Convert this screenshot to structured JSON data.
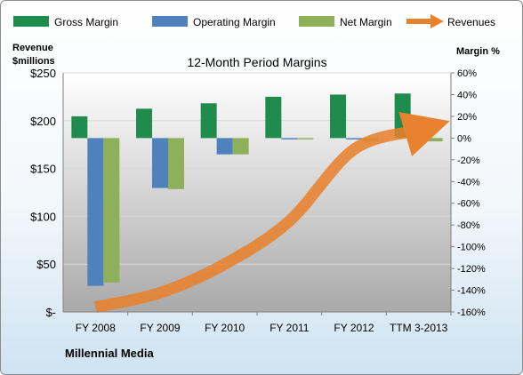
{
  "chart_data": {
    "type": "bar",
    "title": "12-Month Period Margins",
    "categories": [
      "FY 2008",
      "FY 2009",
      "FY 2010",
      "FY 2011",
      "FY 2012",
      "TTM 3-2013"
    ],
    "series": [
      {
        "name": "Gross Margin",
        "type": "bar",
        "axis": "right",
        "color": "#1f8b4c",
        "values": [
          20,
          27,
          32,
          38,
          40,
          41
        ]
      },
      {
        "name": "Operating Margin",
        "type": "bar",
        "axis": "right",
        "color": "#4f81bd",
        "values": [
          -136,
          -46,
          -15,
          -1,
          -1,
          -1
        ]
      },
      {
        "name": "Net Margin",
        "type": "bar",
        "axis": "right",
        "color": "#8fb05a",
        "values": [
          -133,
          -47,
          -15,
          -1,
          -3,
          -3
        ]
      },
      {
        "name": "Revenues",
        "type": "line",
        "axis": "left",
        "color": "#e8822e",
        "values": [
          5,
          20,
          50,
          95,
          170,
          190
        ]
      }
    ],
    "y_left": {
      "label_line1": "Revenue",
      "label_line2": "$millions",
      "min": 0,
      "max": 250,
      "ticks": [
        0,
        50,
        100,
        150,
        200,
        250
      ],
      "tick_labels": [
        "$-",
        "$50",
        "$100",
        "$150",
        "$200",
        "$250"
      ]
    },
    "y_right": {
      "label": "Margin %",
      "min": -160,
      "max": 60,
      "ticks": [
        60,
        40,
        20,
        0,
        -20,
        -40,
        -60,
        -80,
        -100,
        -120,
        -140,
        -160
      ],
      "tick_labels": [
        "60%",
        "40%",
        "20%",
        "0%",
        "-20%",
        "-40%",
        "-60%",
        "-80%",
        "-100%",
        "-120%",
        "-140%",
        "-160%"
      ]
    },
    "legend_position": "top",
    "grid": true,
    "footer": "Millennial Media",
    "colors": {
      "plot_top": "#ffffff",
      "plot_bottom": "#aaaaaa",
      "gridline": "#d9d9d9"
    }
  }
}
